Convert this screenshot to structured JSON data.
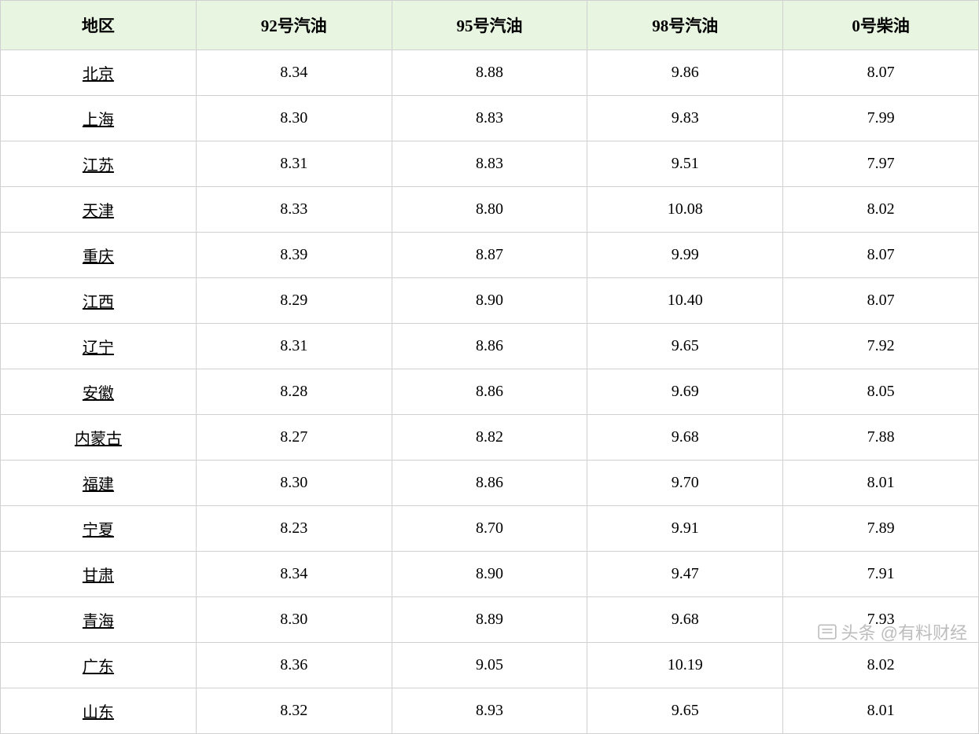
{
  "table": {
    "columns": [
      "地区",
      "92号汽油",
      "95号汽油",
      "98号汽油",
      "0号柴油"
    ],
    "rows": [
      {
        "region": "北京",
        "c92": "8.34",
        "c95": "8.88",
        "c98": "9.86",
        "c0": "8.07"
      },
      {
        "region": "上海",
        "c92": "8.30",
        "c95": "8.83",
        "c98": "9.83",
        "c0": "7.99"
      },
      {
        "region": "江苏",
        "c92": "8.31",
        "c95": "8.83",
        "c98": "9.51",
        "c0": "7.97"
      },
      {
        "region": "天津",
        "c92": "8.33",
        "c95": "8.80",
        "c98": "10.08",
        "c0": "8.02"
      },
      {
        "region": "重庆",
        "c92": "8.39",
        "c95": "8.87",
        "c98": "9.99",
        "c0": "8.07"
      },
      {
        "region": "江西",
        "c92": "8.29",
        "c95": "8.90",
        "c98": "10.40",
        "c0": "8.07"
      },
      {
        "region": "辽宁",
        "c92": "8.31",
        "c95": "8.86",
        "c98": "9.65",
        "c0": "7.92"
      },
      {
        "region": "安徽",
        "c92": "8.28",
        "c95": "8.86",
        "c98": "9.69",
        "c0": "8.05"
      },
      {
        "region": "内蒙古",
        "c92": "8.27",
        "c95": "8.82",
        "c98": "9.68",
        "c0": "7.88"
      },
      {
        "region": "福建",
        "c92": "8.30",
        "c95": "8.86",
        "c98": "9.70",
        "c0": "8.01"
      },
      {
        "region": "宁夏",
        "c92": "8.23",
        "c95": "8.70",
        "c98": "9.91",
        "c0": "7.89"
      },
      {
        "region": "甘肃",
        "c92": "8.34",
        "c95": "8.90",
        "c98": "9.47",
        "c0": "7.91"
      },
      {
        "region": "青海",
        "c92": "8.30",
        "c95": "8.89",
        "c98": "9.68",
        "c0": "7.93"
      },
      {
        "region": "广东",
        "c92": "8.36",
        "c95": "9.05",
        "c98": "10.19",
        "c0": "8.02"
      },
      {
        "region": "山东",
        "c92": "8.32",
        "c95": "8.93",
        "c98": "9.65",
        "c0": "8.01"
      }
    ],
    "header_bg_color": "#e8f5e1",
    "border_color": "#d0d0d0",
    "header_fontsize": 21,
    "cell_fontsize": 20,
    "font_family": "SimSun"
  },
  "watermark": {
    "text": "头条 @有料财经",
    "color": "#999999",
    "fontsize": 22
  }
}
